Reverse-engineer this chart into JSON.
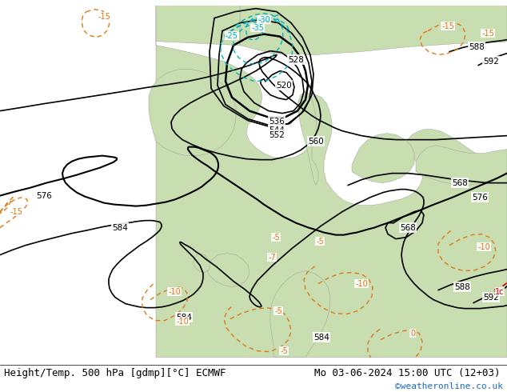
{
  "title_left": "Height/Temp. 500 hPa [gdmp][°C] ECMWF",
  "title_right": "Mo 03-06-2024 15:00 UTC (12+03)",
  "watermark": "©weatheronline.co.uk",
  "bg_land_color": "#c8ddb0",
  "bg_sea_color": "#c8c8c8",
  "contour_color_height": "#000000",
  "contour_color_temp_warm": "#e07818",
  "contour_color_temp_cold": "#00b0c0",
  "contour_color_temp_red": "#cc0000",
  "watermark_color": "#1a6bc8",
  "title_fontsize": 9,
  "watermark_fontsize": 8
}
